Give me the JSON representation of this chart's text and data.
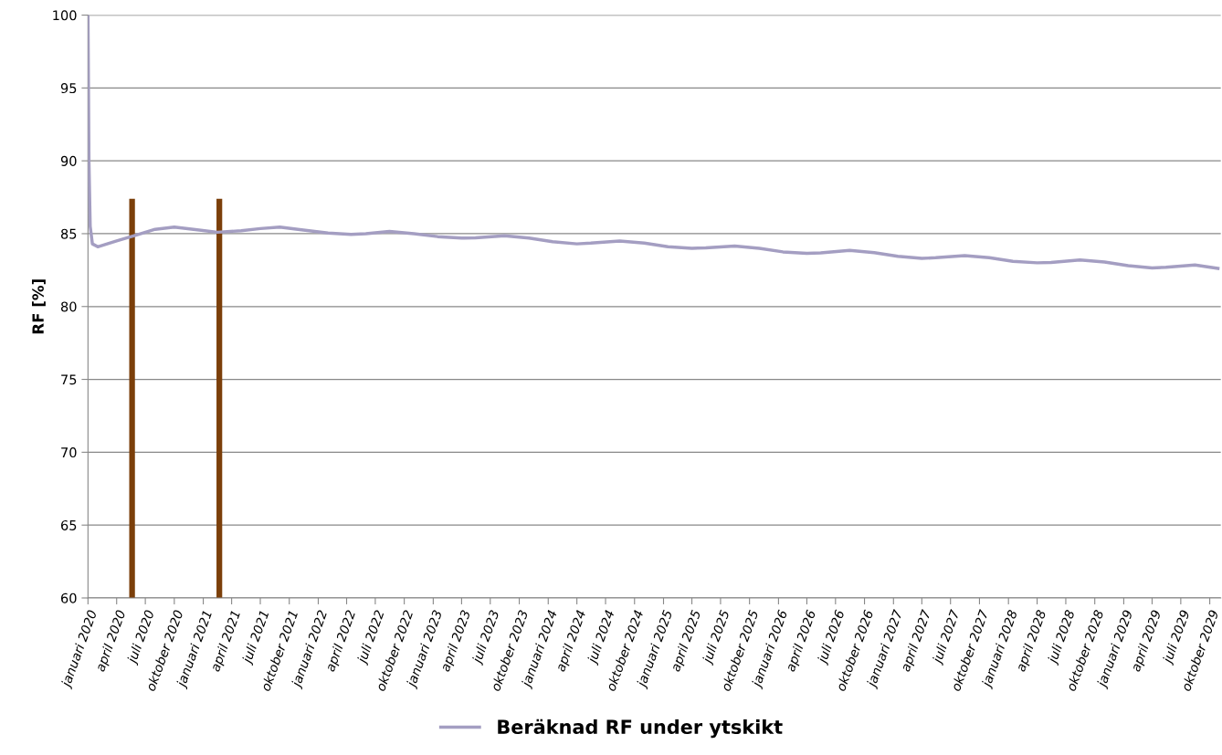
{
  "chart_data": {
    "type": "line",
    "ylabel": "RF [%]",
    "ylim": [
      60,
      100
    ],
    "yticks": [
      60,
      65,
      70,
      75,
      80,
      85,
      90,
      95,
      100
    ],
    "xlim": [
      "2020-01-01",
      "2029-11-05"
    ],
    "xticks": [
      {
        "value": "2020-01-01",
        "label": "januari 2020"
      },
      {
        "value": "2020-04-01",
        "label": "april 2020"
      },
      {
        "value": "2020-07-01",
        "label": "juli 2020"
      },
      {
        "value": "2020-10-01",
        "label": "oktober 2020"
      },
      {
        "value": "2021-01-01",
        "label": "januari 2021"
      },
      {
        "value": "2021-04-01",
        "label": "april 2021"
      },
      {
        "value": "2021-07-01",
        "label": "juli 2021"
      },
      {
        "value": "2021-10-01",
        "label": "oktober 2021"
      },
      {
        "value": "2022-01-01",
        "label": "januari 2022"
      },
      {
        "value": "2022-04-01",
        "label": "april 2022"
      },
      {
        "value": "2022-07-01",
        "label": "juli 2022"
      },
      {
        "value": "2022-10-01",
        "label": "oktober 2022"
      },
      {
        "value": "2023-01-01",
        "label": "januari 2023"
      },
      {
        "value": "2023-04-01",
        "label": "april 2023"
      },
      {
        "value": "2023-07-01",
        "label": "juli 2023"
      },
      {
        "value": "2023-10-01",
        "label": "oktober 2023"
      },
      {
        "value": "2024-01-01",
        "label": "januari 2024"
      },
      {
        "value": "2024-04-01",
        "label": "april 2024"
      },
      {
        "value": "2024-07-01",
        "label": "juli 2024"
      },
      {
        "value": "2024-10-01",
        "label": "oktober 2024"
      },
      {
        "value": "2025-01-01",
        "label": "januari 2025"
      },
      {
        "value": "2025-04-01",
        "label": "april 2025"
      },
      {
        "value": "2025-07-01",
        "label": "juli 2025"
      },
      {
        "value": "2025-10-01",
        "label": "oktober 2025"
      },
      {
        "value": "2026-01-01",
        "label": "januari 2026"
      },
      {
        "value": "2026-04-01",
        "label": "april 2026"
      },
      {
        "value": "2026-07-01",
        "label": "juli 2026"
      },
      {
        "value": "2026-10-01",
        "label": "oktober 2026"
      },
      {
        "value": "2027-01-01",
        "label": "januari 2027"
      },
      {
        "value": "2027-04-01",
        "label": "april 2027"
      },
      {
        "value": "2027-07-01",
        "label": "juli 2027"
      },
      {
        "value": "2027-10-01",
        "label": "oktober 2027"
      },
      {
        "value": "2028-01-01",
        "label": "januari 2028"
      },
      {
        "value": "2028-04-01",
        "label": "april 2028"
      },
      {
        "value": "2028-07-01",
        "label": "juli 2028"
      },
      {
        "value": "2028-10-01",
        "label": "oktober 2028"
      },
      {
        "value": "2029-01-01",
        "label": "januari 2029"
      },
      {
        "value": "2029-04-01",
        "label": "april 2029"
      },
      {
        "value": "2029-07-01",
        "label": "juli 2029"
      },
      {
        "value": "2029-10-01",
        "label": "oktober 2029"
      }
    ],
    "grid": "y",
    "legend": "bottom",
    "marker": "none",
    "line_style": "solid",
    "series": [
      {
        "name": "Beräknad RF under ytskikt",
        "color": "#a49ec2",
        "x": [
          "2020-01-01",
          "2020-01-04",
          "2020-01-08",
          "2020-01-15",
          "2020-02-01",
          "2020-04-01",
          "2020-06-01",
          "2020-08-01",
          "2020-10-01",
          "2020-12-01",
          "2021-02-15",
          "2021-05-01",
          "2021-07-01",
          "2021-09-01",
          "2021-11-15",
          "2022-02-01",
          "2022-04-15",
          "2022-06-01",
          "2022-08-15",
          "2022-11-01",
          "2023-01-15",
          "2023-04-01",
          "2023-05-15",
          "2023-08-15",
          "2023-11-01",
          "2024-01-15",
          "2024-04-01",
          "2024-05-15",
          "2024-08-15",
          "2024-11-01",
          "2025-01-15",
          "2025-04-01",
          "2025-05-15",
          "2025-08-15",
          "2025-11-01",
          "2026-01-15",
          "2026-04-01",
          "2026-05-15",
          "2026-08-15",
          "2026-11-01",
          "2027-01-15",
          "2027-04-01",
          "2027-05-15",
          "2027-08-15",
          "2027-11-01",
          "2028-01-15",
          "2028-04-01",
          "2028-05-15",
          "2028-08-15",
          "2028-11-01",
          "2029-01-15",
          "2029-04-01",
          "2029-05-15",
          "2029-08-15",
          "2029-11-01"
        ],
        "values": [
          100,
          90,
          85.5,
          84.3,
          84.1,
          84.5,
          84.9,
          85.3,
          85.45,
          85.3,
          85.1,
          85.2,
          85.35,
          85.45,
          85.25,
          85.05,
          84.95,
          85.0,
          85.15,
          85.0,
          84.8,
          84.7,
          84.72,
          84.85,
          84.7,
          84.45,
          84.3,
          84.35,
          84.5,
          84.35,
          84.1,
          84.0,
          84.02,
          84.15,
          84.0,
          83.75,
          83.65,
          83.68,
          83.85,
          83.7,
          83.45,
          83.3,
          83.35,
          83.5,
          83.35,
          83.1,
          83.0,
          83.02,
          83.2,
          83.05,
          82.8,
          82.65,
          82.7,
          82.85,
          82.6
        ]
      },
      {
        "color": "#7b3f0a",
        "x": [
          "2020-05-20",
          "2020-05-20"
        ],
        "values": [
          60,
          87.4
        ]
      },
      {
        "color": "#7b3f0a",
        "x": [
          "2021-02-21",
          "2021-02-21"
        ],
        "values": [
          60,
          87.4
        ]
      }
    ]
  }
}
